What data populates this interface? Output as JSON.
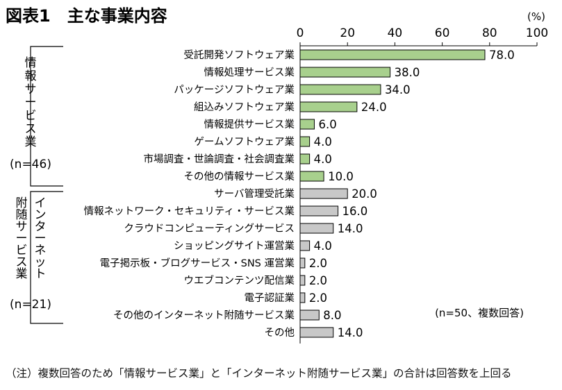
{
  "figure": {
    "title": "図表1　主な事業内容",
    "unit": "(%)",
    "sample_note": "(n=50、複数回答)",
    "footnote": "（注）複数回答のため「情報サービス業」と「インターネット附随サービス業」の合計は回答数を上回る"
  },
  "groups": [
    {
      "name": "情報サービス業",
      "n": "(n=46)"
    },
    {
      "name": "インターネット附随サービス業",
      "n": "(n=21)"
    }
  ],
  "chart_data": {
    "type": "bar",
    "orientation": "horizontal",
    "xlim": [
      0,
      100
    ],
    "ticks": [
      "0",
      "20",
      "40",
      "60",
      "80",
      "100"
    ],
    "grid": false,
    "colors": {
      "情報サービス業": "#a8d08d",
      "インターネット附随サービス業": "#c8c8c8"
    },
    "categories": [
      "受託開発ソフトウェア業",
      "情報処理サービス業",
      "パッケージソフトウェア業",
      "組込みソフトウェア業",
      "情報提供サービス業",
      "ゲームソフトウェア業",
      "市場調査・世論調査・社会調査業",
      "その他の情報サービス業",
      "サーバ管理受託業",
      "情報ネットワーク・セキュリティ・サービス業",
      "クラウドコンピューティングサービス",
      "ショッピングサイト運営業",
      "電子掲示板・ブログサービス・SNS 運営業",
      "ウエブコンテンツ配信業",
      "電子認証業",
      "その他のインターネット附随サービス業",
      "その他"
    ],
    "values": [
      78.0,
      38.0,
      34.0,
      24.0,
      6.0,
      4.0,
      4.0,
      10.0,
      20.0,
      16.0,
      14.0,
      4.0,
      2.0,
      2.0,
      2.0,
      8.0,
      14.0
    ],
    "labels": [
      "78.0",
      "38.0",
      "34.0",
      "24.0",
      "6.0",
      "4.0",
      "4.0",
      "10.0",
      "20.0",
      "16.0",
      "14.0",
      "4.0",
      "2.0",
      "2.0",
      "2.0",
      "8.0",
      "14.0"
    ],
    "group_of_bar": [
      0,
      0,
      0,
      0,
      0,
      0,
      0,
      0,
      1,
      1,
      1,
      1,
      1,
      1,
      1,
      1,
      1
    ]
  }
}
